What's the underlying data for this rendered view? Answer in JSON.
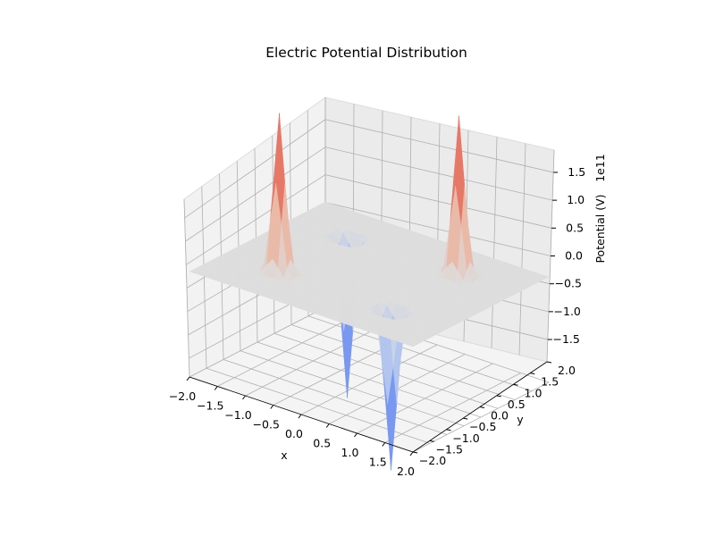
{
  "chart_data": {
    "type": "surface3d",
    "title": "Electric Potential Distribution",
    "xlabel": "x",
    "ylabel": "y",
    "zlabel": "Potential (V)",
    "z_offset_label": "1e11",
    "xlim": [
      -2.0,
      2.0
    ],
    "ylim": [
      -2.0,
      2.0
    ],
    "zlim": [
      -1.9,
      1.9
    ],
    "x_ticks": [
      "−2.0",
      "−1.5",
      "−1.0",
      "−0.5",
      "0.0",
      "0.5",
      "1.0",
      "1.5",
      "2.0"
    ],
    "y_ticks": [
      "−2.0",
      "−1.5",
      "−1.0",
      "−0.5",
      "0.0",
      "0.5",
      "1.0",
      "1.5",
      "2.0"
    ],
    "z_ticks": [
      "−1.5",
      "−1.0",
      "−0.5",
      "0.0",
      "0.5",
      "1.0",
      "1.5"
    ],
    "colormap": "coolwarm",
    "grid": true,
    "charges": [
      {
        "x": -1.0,
        "y": -1.0,
        "peak": 1.9,
        "sign": "positive"
      },
      {
        "x": 1.0,
        "y": 1.0,
        "peak": 1.9,
        "sign": "positive"
      },
      {
        "x": -1.0,
        "y": 1.0,
        "peak": -1.9,
        "sign": "negative"
      },
      {
        "x": 1.0,
        "y": -1.0,
        "peak": -1.9,
        "sign": "negative"
      }
    ]
  }
}
